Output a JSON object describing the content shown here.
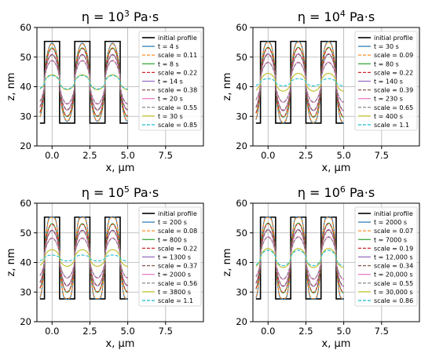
{
  "chart_data": [
    {
      "type": "line",
      "title_parts": [
        "η = 10",
        "3",
        " Pa·s"
      ],
      "xlabel": "x, μm",
      "ylabel": "z, nm",
      "xlim": [
        -1,
        10
      ],
      "ylim": [
        20,
        60
      ],
      "xticks": [
        0.0,
        2.5,
        5.0,
        7.5
      ],
      "xtick_labels": [
        "0.0",
        "2.5",
        "5.0",
        "7.5"
      ],
      "yticks": [
        20,
        30,
        40,
        50,
        60
      ],
      "ytick_labels": [
        "20",
        "30",
        "40",
        "50",
        "60"
      ],
      "grid": true,
      "legend": "right",
      "initial_profile": {
        "name": "initial profile",
        "low": 27.7,
        "high": 55.3,
        "period": 2.0,
        "x_start": -0.8,
        "x_end": 5.0
      },
      "legend_entries": [
        {
          "label": "initial profile",
          "style": "solid",
          "color": "#000000"
        },
        {
          "label": "t = 4 s",
          "style": "solid",
          "color": "#1f77b4"
        },
        {
          "label": "scale = 0.11",
          "style": "dashed",
          "color": "#ff7f0e"
        },
        {
          "label": "t = 8 s",
          "style": "solid",
          "color": "#2ca02c"
        },
        {
          "label": "scale = 0.22",
          "style": "dashed",
          "color": "#d62728"
        },
        {
          "label": "t = 14 s",
          "style": "solid",
          "color": "#9467bd"
        },
        {
          "label": "scale = 0.38",
          "style": "dashed",
          "color": "#8c564b"
        },
        {
          "label": "t = 20 s",
          "style": "solid",
          "color": "#e377c2"
        },
        {
          "label": "scale = 0.55",
          "style": "dashed",
          "color": "#7f7f7f"
        },
        {
          "label": "t = 30 s",
          "style": "solid",
          "color": "#bcbd22"
        },
        {
          "label": "scale = 0.85",
          "style": "dashed",
          "color": "#17becf"
        }
      ],
      "series": [
        {
          "color": "#1f77b4",
          "amplitude": 13.2,
          "overshoot": 0.0
        },
        {
          "color": "#ff7f0e",
          "amplitude": 13.0,
          "overshoot": 0.0,
          "dashed": true
        },
        {
          "color": "#2ca02c",
          "amplitude": 11.6,
          "overshoot": 0.0
        },
        {
          "color": "#d62728",
          "amplitude": 11.4,
          "overshoot": 0.0,
          "dashed": true
        },
        {
          "color": "#9467bd",
          "amplitude": 9.4,
          "overshoot": 0.0
        },
        {
          "color": "#8c564b",
          "amplitude": 9.2,
          "overshoot": 0.0,
          "dashed": true
        },
        {
          "color": "#e377c2",
          "amplitude": 7.4,
          "overshoot": 0.0
        },
        {
          "color": "#7f7f7f",
          "amplitude": 7.2,
          "overshoot": 0.0,
          "dashed": true
        },
        {
          "color": "#bcbd22",
          "amplitude": 2.5,
          "overshoot": 0.0
        },
        {
          "color": "#17becf",
          "amplitude": 2.3,
          "overshoot": 0.0,
          "dashed": true
        }
      ]
    },
    {
      "type": "line",
      "title_parts": [
        "η = 10",
        "4",
        " Pa·s"
      ],
      "xlabel": "x, μm",
      "ylabel": "z, nm",
      "xlim": [
        -1,
        10
      ],
      "ylim": [
        20,
        60
      ],
      "xticks": [
        0.0,
        2.5,
        5.0,
        7.5
      ],
      "xtick_labels": [
        "0.0",
        "2.5",
        "5.0",
        "7.5"
      ],
      "yticks": [
        20,
        30,
        40,
        50,
        60
      ],
      "ytick_labels": [
        "20",
        "30",
        "40",
        "50",
        "60"
      ],
      "grid": true,
      "legend": "right",
      "initial_profile": {
        "name": "initial profile",
        "low": 27.7,
        "high": 55.3,
        "period": 2.0,
        "x_start": -0.8,
        "x_end": 5.0
      },
      "legend_entries": [
        {
          "label": "initial profile",
          "style": "solid",
          "color": "#000000"
        },
        {
          "label": "t = 30 s",
          "style": "solid",
          "color": "#1f77b4"
        },
        {
          "label": "scale = 0.09",
          "style": "dashed",
          "color": "#ff7f0e"
        },
        {
          "label": "t = 80 s",
          "style": "solid",
          "color": "#2ca02c"
        },
        {
          "label": "scale = 0.22",
          "style": "dashed",
          "color": "#d62728"
        },
        {
          "label": "t = 140 s",
          "style": "solid",
          "color": "#9467bd"
        },
        {
          "label": "scale = 0.39",
          "style": "dashed",
          "color": "#8c564b"
        },
        {
          "label": "t = 230 s",
          "style": "solid",
          "color": "#e377c2"
        },
        {
          "label": "scale = 0.65",
          "style": "dashed",
          "color": "#7f7f7f"
        },
        {
          "label": "t = 400 s",
          "style": "solid",
          "color": "#bcbd22"
        },
        {
          "label": "scale = 1.1",
          "style": "dashed",
          "color": "#17becf"
        }
      ],
      "series": [
        {
          "color": "#1f77b4",
          "amplitude": 13.8,
          "overshoot": 0.4
        },
        {
          "color": "#ff7f0e",
          "amplitude": 13.6,
          "overshoot": 0.3,
          "dashed": true
        },
        {
          "color": "#2ca02c",
          "amplitude": 11.8,
          "overshoot": 0.0
        },
        {
          "color": "#d62728",
          "amplitude": 11.6,
          "overshoot": 0.0,
          "dashed": true
        },
        {
          "color": "#9467bd",
          "amplitude": 9.6,
          "overshoot": 0.0
        },
        {
          "color": "#8c564b",
          "amplitude": 9.4,
          "overshoot": 0.0,
          "dashed": true
        },
        {
          "color": "#e377c2",
          "amplitude": 6.8,
          "overshoot": 0.0
        },
        {
          "color": "#7f7f7f",
          "amplitude": 6.6,
          "overshoot": 0.0,
          "dashed": true
        },
        {
          "color": "#bcbd22",
          "amplitude": 3.0,
          "overshoot": 0.0
        },
        {
          "color": "#17becf",
          "amplitude": 1.2,
          "overshoot": 0.0,
          "dashed": true
        }
      ]
    },
    {
      "type": "line",
      "title_parts": [
        "η = 10",
        "5",
        " Pa·s"
      ],
      "xlabel": "x, μm",
      "ylabel": "z, nm",
      "xlim": [
        -1,
        10
      ],
      "ylim": [
        20,
        60
      ],
      "xticks": [
        0.0,
        2.5,
        5.0,
        7.5
      ],
      "xtick_labels": [
        "0.0",
        "2.5",
        "5.0",
        "7.5"
      ],
      "yticks": [
        20,
        30,
        40,
        50,
        60
      ],
      "ytick_labels": [
        "20",
        "30",
        "40",
        "50",
        "60"
      ],
      "grid": true,
      "legend": "right",
      "initial_profile": {
        "name": "initial profile",
        "low": 27.7,
        "high": 55.3,
        "period": 2.0,
        "x_start": -0.8,
        "x_end": 5.0
      },
      "legend_entries": [
        {
          "label": "initial profile",
          "style": "solid",
          "color": "#000000"
        },
        {
          "label": "t = 200 s",
          "style": "solid",
          "color": "#1f77b4"
        },
        {
          "label": "scale = 0.08",
          "style": "dashed",
          "color": "#ff7f0e"
        },
        {
          "label": "t = 800 s",
          "style": "solid",
          "color": "#2ca02c"
        },
        {
          "label": "scale = 0.22",
          "style": "dashed",
          "color": "#d62728"
        },
        {
          "label": "t = 1300 s",
          "style": "solid",
          "color": "#9467bd"
        },
        {
          "label": "scale = 0.37",
          "style": "dashed",
          "color": "#8c564b"
        },
        {
          "label": "t = 2000 s",
          "style": "solid",
          "color": "#e377c2"
        },
        {
          "label": "scale = 0.56",
          "style": "dashed",
          "color": "#7f7f7f"
        },
        {
          "label": "t = 3800 s",
          "style": "solid",
          "color": "#bcbd22"
        },
        {
          "label": "scale = 1.1",
          "style": "dashed",
          "color": "#17becf"
        }
      ],
      "series": [
        {
          "color": "#1f77b4",
          "amplitude": 14.0,
          "overshoot": 1.2
        },
        {
          "color": "#ff7f0e",
          "amplitude": 13.8,
          "overshoot": 1.0,
          "dashed": true
        },
        {
          "color": "#2ca02c",
          "amplitude": 11.6,
          "overshoot": 0.0
        },
        {
          "color": "#d62728",
          "amplitude": 11.4,
          "overshoot": 0.0,
          "dashed": true
        },
        {
          "color": "#9467bd",
          "amplitude": 9.4,
          "overshoot": 0.0
        },
        {
          "color": "#8c564b",
          "amplitude": 9.2,
          "overshoot": 0.0,
          "dashed": true
        },
        {
          "color": "#e377c2",
          "amplitude": 6.8,
          "overshoot": 0.0
        },
        {
          "color": "#7f7f7f",
          "amplitude": 6.6,
          "overshoot": 0.0,
          "dashed": true
        },
        {
          "color": "#bcbd22",
          "amplitude": 2.8,
          "overshoot": 0.0
        },
        {
          "color": "#17becf",
          "amplitude": 1.0,
          "overshoot": 0.0,
          "dashed": true
        }
      ]
    },
    {
      "type": "line",
      "title_parts": [
        "η = 10",
        "6",
        " Pa·s"
      ],
      "xlabel": "x, μm",
      "ylabel": "z, nm",
      "xlim": [
        -1,
        10
      ],
      "ylim": [
        20,
        60
      ],
      "xticks": [
        0.0,
        2.5,
        5.0,
        7.5
      ],
      "xtick_labels": [
        "0.0",
        "2.5",
        "5.0",
        "7.5"
      ],
      "yticks": [
        20,
        30,
        40,
        50,
        60
      ],
      "ytick_labels": [
        "20",
        "30",
        "40",
        "50",
        "60"
      ],
      "grid": true,
      "legend": "right",
      "initial_profile": {
        "name": "initial profile",
        "low": 27.7,
        "high": 55.3,
        "period": 2.0,
        "x_start": -0.8,
        "x_end": 5.0
      },
      "legend_entries": [
        {
          "label": "initial profile",
          "style": "solid",
          "color": "#000000"
        },
        {
          "label": "t = 2000 s",
          "style": "solid",
          "color": "#1f77b4"
        },
        {
          "label": "scale = 0.07",
          "style": "dashed",
          "color": "#ff7f0e"
        },
        {
          "label": "t = 7000 s",
          "style": "solid",
          "color": "#2ca02c"
        },
        {
          "label": "scale = 0.19",
          "style": "dashed",
          "color": "#d62728"
        },
        {
          "label": "t = 12,000 s",
          "style": "solid",
          "color": "#9467bd"
        },
        {
          "label": "scale = 0.34",
          "style": "dashed",
          "color": "#8c564b"
        },
        {
          "label": "t = 20,000 s",
          "style": "solid",
          "color": "#e377c2"
        },
        {
          "label": "scale = 0.55",
          "style": "dashed",
          "color": "#7f7f7f"
        },
        {
          "label": "t = 30,000 s",
          "style": "solid",
          "color": "#bcbd22"
        },
        {
          "label": "scale = 0.86",
          "style": "dashed",
          "color": "#17becf"
        }
      ],
      "series": [
        {
          "color": "#1f77b4",
          "amplitude": 14.0,
          "overshoot": 1.2
        },
        {
          "color": "#ff7f0e",
          "amplitude": 13.8,
          "overshoot": 1.0,
          "dashed": true
        },
        {
          "color": "#2ca02c",
          "amplitude": 11.8,
          "overshoot": 0.0
        },
        {
          "color": "#d62728",
          "amplitude": 11.6,
          "overshoot": 0.0,
          "dashed": true
        },
        {
          "color": "#9467bd",
          "amplitude": 9.6,
          "overshoot": 0.0
        },
        {
          "color": "#8c564b",
          "amplitude": 9.4,
          "overshoot": 0.0,
          "dashed": true
        },
        {
          "color": "#e377c2",
          "amplitude": 7.2,
          "overshoot": 0.0
        },
        {
          "color": "#7f7f7f",
          "amplitude": 7.0,
          "overshoot": 0.0,
          "dashed": true
        },
        {
          "color": "#bcbd22",
          "amplitude": 3.2,
          "overshoot": 0.0
        },
        {
          "color": "#17becf",
          "amplitude": 2.6,
          "overshoot": 0.0,
          "dashed": true
        }
      ]
    }
  ]
}
